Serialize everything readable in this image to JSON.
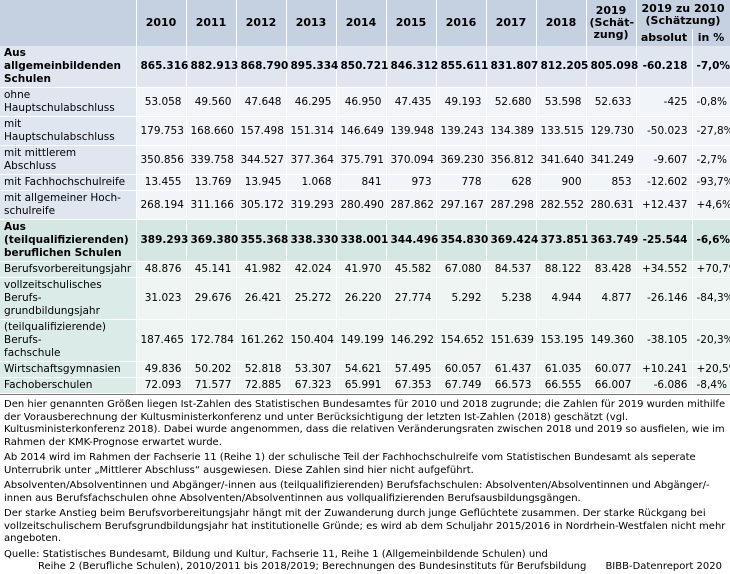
{
  "table": {
    "columns": [
      "2010",
      "2011",
      "2012",
      "2013",
      "2014",
      "2015",
      "2016",
      "2017",
      "2018",
      "2019\n(Schät-\nzung)"
    ],
    "comparison_header": "2019 zu 2010\n(Schätzung)",
    "comparison_columns": [
      "absolut",
      "in %"
    ],
    "sections": [
      {
        "header": [
          "Aus allgemeinbildenden Schulen",
          "865.316",
          "882.913",
          "868.790",
          "895.334",
          "850.721",
          "846.312",
          "855.611",
          "831.807",
          "812.205",
          "805.098",
          "-60.218",
          "-7,0%"
        ],
        "rows": [
          [
            "ohne Hauptschulabschluss",
            "53.058",
            "49.560",
            "47.648",
            "46.295",
            "46.950",
            "47.435",
            "49.193",
            "52.680",
            "53.598",
            "52.633",
            "-425",
            "-0,8%"
          ],
          [
            "mit Hauptschulabschluss",
            "179.753",
            "168.660",
            "157.498",
            "151.314",
            "146.649",
            "139.948",
            "139.243",
            "134.389",
            "133.515",
            "129.730",
            "-50.023",
            "-27,8%"
          ],
          [
            "mit mittlerem Abschluss",
            "350.856",
            "339.758",
            "344.527",
            "377.364",
            "375.791",
            "370.094",
            "369.230",
            "356.812",
            "341.640",
            "341.249",
            "-9.607",
            "-2,7%"
          ],
          [
            "mit Fachhochschulreife",
            "13.455",
            "13.769",
            "13.945",
            "1.068",
            "841",
            "973",
            "778",
            "628",
            "900",
            "853",
            "-12.602",
            "-93,7%"
          ],
          [
            "mit allgemeiner Hoch-\nschulreife",
            "268.194",
            "311.166",
            "305.172",
            "319.293",
            "280.490",
            "287.862",
            "297.167",
            "287.298",
            "282.552",
            "280.631",
            "+12.437",
            "+4,6%"
          ]
        ]
      },
      {
        "header": [
          "Aus (teilqualifizierenden)\nberuflichen Schulen",
          "389.293",
          "369.380",
          "355.368",
          "338.330",
          "338.001",
          "344.496",
          "354.830",
          "369.424",
          "373.851",
          "363.749",
          "-25.544",
          "-6,6%"
        ],
        "rows": [
          [
            "Berufsvorbereitungsjahr",
            "48.876",
            "45.141",
            "41.982",
            "42.024",
            "41.970",
            "45.582",
            "67.080",
            "84.537",
            "88.122",
            "83.428",
            "+34.552",
            "+70,7%"
          ],
          [
            "vollzeitschulisches Berufs-\ngrundbildungsjahr",
            "31.023",
            "29.676",
            "26.421",
            "25.272",
            "26.220",
            "27.774",
            "5.292",
            "5.238",
            "4.944",
            "4.877",
            "-26.146",
            "-84,3%"
          ],
          [
            "(teilqualifizierende) Berufs-\nfachschule",
            "187.465",
            "172.784",
            "161.262",
            "150.404",
            "149.199",
            "146.292",
            "154.652",
            "151.639",
            "153.195",
            "149.360",
            "-38.105",
            "-20,3%"
          ],
          [
            "Wirtschaftsgymnasien",
            "49.836",
            "50.202",
            "52.818",
            "53.307",
            "54.621",
            "57.495",
            "60.057",
            "61.437",
            "61.035",
            "60.077",
            "+10.241",
            "+20,5%"
          ],
          [
            "Fachoberschulen",
            "72.093",
            "71.577",
            "72.885",
            "67.323",
            "65.991",
            "67.353",
            "67.749",
            "66.573",
            "66.555",
            "66.007",
            "-6.086",
            "-8,4%"
          ]
        ]
      }
    ]
  },
  "notes": [
    "Den hier genannten Größen liegen Ist-Zahlen des Statistischen Bundesamtes für 2010 und 2018 zugrunde; die Zahlen für 2019 wurden mithilfe der Vorausberechnung der Kultusministerkonferenz und unter Berücksichtigung der letzten Ist-Zahlen (2018) geschätzt (vgl. Kultusministerkonferenz 2018). Dabei wurde angenommen, dass die relativen Veränderungsraten zwischen 2018 und 2019 so ausfielen, wie im Rahmen der KMK-Prognose erwartet wurde.",
    "Ab 2014 wird im Rahmen der Fachserie 11 (Reihe 1) der schulische Teil der Fachhochschulreife vom Statistischen Bundesamt als seperate Unterrubrik unter „Mittlerer Abschluss“ ausgewiesen. Diese Zahlen sind hier nicht aufgeführt.",
    "Absolventen/Absolventinnen und Abgänger/-innen aus (teilqualifizierenden) Berufsfachschulen: Absolventen/Absolventinnen und Abgänger/-innen aus Berufsfachschulen ohne Absolventen/Absolventinnen aus vollqualifizierenden  Berufsausbildungsgängen.",
    "Der starke Anstieg beim Berufsvorbereitungsjahr hängt mit der Zuwanderung durch junge Geflüchtete zusammen. Der starke Rückgang bei vollzeitschulischem Berufsgrundbildungsjahr hat institutionelle Gründe; es wird ab dem Schuljahr 2015/2016 in Nordrhein-Westfalen nicht mehr angeboten."
  ],
  "source": [
    "Quelle: Statistisches Bundesamt, Bildung und Kultur, Fachserie 11, Reihe 1 (Allgemeinbildende Schulen) und",
    "Reihe 2 (Berufliche Schulen), 2010/2011 bis 2018/2019; Berechnungen des Bundesinstituts für Berufsbildung"
  ],
  "credit": "BIBB-Datenreport 2020"
}
